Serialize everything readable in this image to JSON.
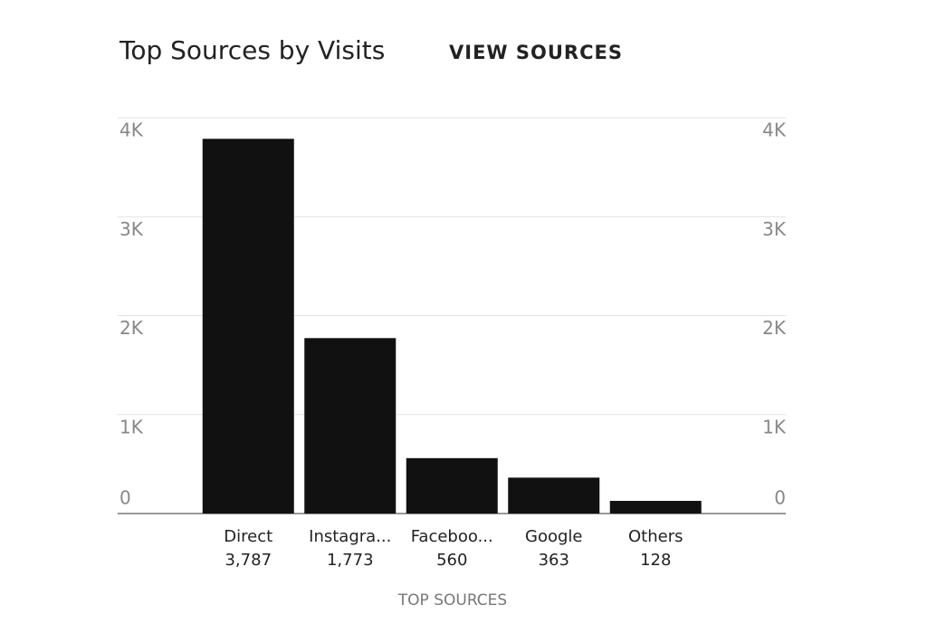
{
  "chart_data": {
    "type": "bar",
    "title": "Top Sources by Visits",
    "action_link": "VIEW SOURCES",
    "x_label": "TOP SOURCES",
    "categories": [
      "Direct",
      "Instagra...",
      "Faceboo...",
      "Google",
      "Others"
    ],
    "values": [
      3787,
      1773,
      560,
      363,
      128
    ],
    "value_labels": [
      "3,787",
      "1,773",
      "560",
      "363",
      "128"
    ],
    "color": "#111111",
    "ylim": [
      0,
      4000
    ],
    "yticks": [
      0,
      {
        "value": 1000,
        "label": "1K"
      },
      {
        "value": 2000,
        "label": "2K"
      },
      {
        "value": 3000,
        "label": "3K"
      },
      {
        "value": 4000,
        "label": "4K"
      }
    ],
    "y2lim": [
      0,
      4000
    ],
    "y2ticks": [
      0,
      {
        "value": 1000,
        "label": "1K"
      },
      {
        "value": 2000,
        "label": "2K"
      },
      {
        "value": 3000,
        "label": "3K"
      },
      {
        "value": 4000,
        "label": "4K"
      }
    ],
    "grid": true
  }
}
